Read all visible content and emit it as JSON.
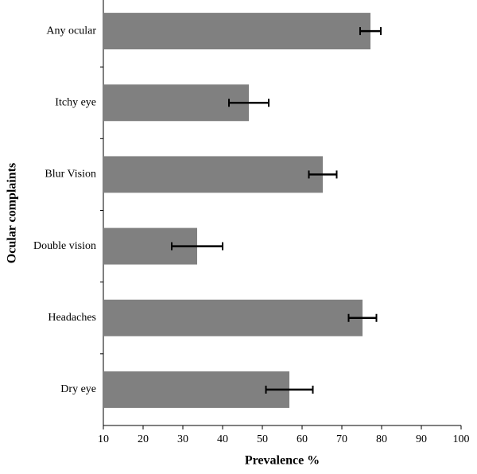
{
  "chart_data": {
    "type": "bar",
    "orientation": "horizontal",
    "x_label": "Prevalence %",
    "y_label": "Ocular complaints",
    "categories": [
      "Any ocular",
      "Itchy eye",
      "Blur Vision",
      "Double vision",
      "Headaches",
      "Dry eye"
    ],
    "values": [
      77.2,
      46.6,
      65.2,
      33.6,
      75.2,
      56.8
    ],
    "errors": [
      2.6,
      5,
      3.5,
      6.4,
      3.5,
      5.9
    ],
    "color": "#808080",
    "xlim": [
      10,
      100
    ],
    "xticks": [
      10,
      20,
      30,
      40,
      50,
      60,
      70,
      80,
      90,
      100
    ]
  }
}
